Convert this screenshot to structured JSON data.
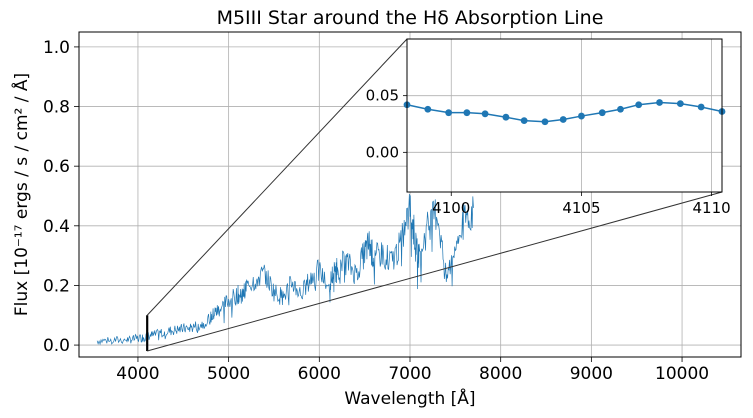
{
  "chart_data": {
    "type": "line",
    "title": "M5III Star around the Hδ Absorption Line",
    "xlabel": "Wavelength [Å]",
    "ylabel": "Flux [10⁻¹⁷ ergs / s / cm² / Å]",
    "xlim": [
      3350,
      10650
    ],
    "ylim": [
      -0.04,
      1.05
    ],
    "x_ticks": [
      4000,
      5000,
      6000,
      7000,
      8000,
      9000,
      10000
    ],
    "x_tick_labels": [
      "4000",
      "5000",
      "6000",
      "7000",
      "8000",
      "9000",
      "10000"
    ],
    "y_ticks": [
      0.0,
      0.2,
      0.4,
      0.6,
      0.8,
      1.0
    ],
    "y_tick_labels": [
      "0.0",
      "0.2",
      "0.4",
      "0.6",
      "0.8",
      "1.0"
    ],
    "grid": true,
    "line_color": "#1f77b4",
    "spectrum": {
      "x": [
        3550,
        3700,
        3850,
        3950,
        4050,
        4100,
        4200,
        4300,
        4400,
        4500,
        4600,
        4700,
        4800,
        4850,
        4900,
        5000,
        5100,
        5150,
        5200,
        5300,
        5400,
        5500,
        5600,
        5700,
        5800,
        5900,
        6000,
        6100,
        6150,
        6200,
        6300,
        6400,
        6500,
        6550,
        6600,
        6700,
        6800,
        6900,
        7000,
        7050,
        7100,
        7200,
        7300,
        7400,
        7500,
        7600,
        7700
      ],
      "y": [
        0.015,
        0.015,
        0.018,
        0.02,
        0.025,
        0.03,
        0.035,
        0.045,
        0.05,
        0.055,
        0.06,
        0.07,
        0.09,
        0.11,
        0.12,
        0.15,
        0.17,
        0.16,
        0.2,
        0.22,
        0.24,
        0.18,
        0.16,
        0.21,
        0.17,
        0.22,
        0.25,
        0.19,
        0.24,
        0.26,
        0.28,
        0.24,
        0.31,
        0.34,
        0.29,
        0.31,
        0.28,
        0.34,
        0.46,
        0.37,
        0.3,
        0.4,
        0.45,
        0.22,
        0.33,
        0.42,
        0.46
      ]
    },
    "highlight": {
      "x": 4102,
      "ymin": -0.02,
      "ymax": 0.1
    },
    "inset": {
      "xlim": [
        4098.3,
        4110.4
      ],
      "ylim": [
        -0.035,
        0.1
      ],
      "x_ticks": [
        4100,
        4105,
        4110
      ],
      "x_tick_labels": [
        "4100",
        "4105",
        "4110"
      ],
      "y_ticks": [
        0.0,
        0.05
      ],
      "y_tick_labels": [
        "0.00",
        "0.05"
      ],
      "grid": true,
      "x": [
        4098.3,
        4099.1,
        4099.9,
        4100.6,
        4101.3,
        4102.1,
        4102.8,
        4103.6,
        4104.3,
        4105.0,
        4105.8,
        4106.5,
        4107.2,
        4108.0,
        4108.8,
        4109.6,
        4110.4
      ],
      "y": [
        0.042,
        0.038,
        0.035,
        0.035,
        0.034,
        0.031,
        0.028,
        0.027,
        0.029,
        0.032,
        0.035,
        0.038,
        0.042,
        0.044,
        0.043,
        0.04,
        0.036
      ]
    }
  }
}
